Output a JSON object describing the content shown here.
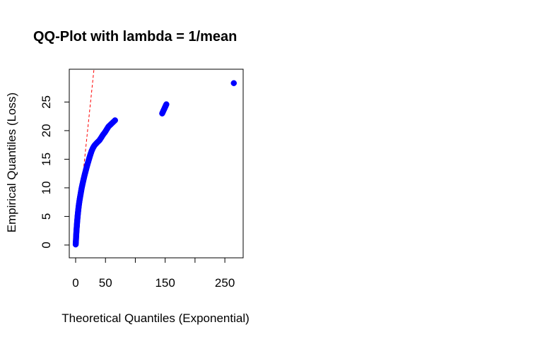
{
  "chart_data": {
    "type": "scatter",
    "title": "QQ-Plot with lambda = 1/mean",
    "xlabel": "Theoretical Quantiles (Exponential)",
    "ylabel": "Empirical Quantiles (Loss)",
    "xlim": [
      0,
      270
    ],
    "ylim": [
      -1,
      29.5
    ],
    "x_ticks": [
      0,
      50,
      100,
      150,
      200,
      250
    ],
    "x_tick_labels": [
      "0",
      "50",
      "",
      "150",
      "",
      "250"
    ],
    "y_ticks": [
      0,
      5,
      10,
      15,
      20,
      25
    ],
    "y_tick_labels": [
      "0",
      "5",
      "10",
      "15",
      "20",
      "25"
    ],
    "grid": false,
    "point_color": "#0000ff",
    "reference_line": {
      "slope": 1,
      "intercept": 0,
      "color": "#ff0000",
      "style": "dashed"
    },
    "points": [
      [
        0.1,
        0.1
      ],
      [
        0.2,
        0.3
      ],
      [
        0.4,
        0.6
      ],
      [
        0.6,
        1.0
      ],
      [
        0.8,
        1.4
      ],
      [
        1.0,
        1.8
      ],
      [
        1.3,
        2.3
      ],
      [
        1.6,
        2.8
      ],
      [
        2.0,
        3.3
      ],
      [
        2.4,
        3.9
      ],
      [
        2.9,
        4.5
      ],
      [
        3.4,
        5.1
      ],
      [
        4.0,
        5.7
      ],
      [
        4.6,
        6.3
      ],
      [
        5.3,
        6.9
      ],
      [
        6.1,
        7.5
      ],
      [
        7.0,
        8.1
      ],
      [
        8.0,
        8.7
      ],
      [
        9.0,
        9.3
      ],
      [
        10.0,
        9.9
      ],
      [
        11.2,
        10.5
      ],
      [
        12.5,
        11.1
      ],
      [
        13.8,
        11.7
      ],
      [
        15.2,
        12.3
      ],
      [
        16.7,
        12.9
      ],
      [
        18.2,
        13.5
      ],
      [
        19.8,
        14.1
      ],
      [
        21.5,
        14.7
      ],
      [
        23.2,
        15.3
      ],
      [
        25.0,
        15.9
      ],
      [
        27.0,
        16.5
      ],
      [
        29.2,
        17.0
      ],
      [
        31.5,
        17.4
      ],
      [
        34.0,
        17.7
      ],
      [
        36.8,
        18.0
      ],
      [
        39.8,
        18.3
      ],
      [
        43.0,
        18.8
      ],
      [
        46.0,
        19.3
      ],
      [
        49.0,
        19.7
      ],
      [
        52.0,
        20.2
      ],
      [
        55.0,
        20.7
      ],
      [
        58.0,
        21.0
      ],
      [
        66.0,
        21.8
      ],
      [
        145.0,
        23.0
      ],
      [
        152.0,
        24.6
      ],
      [
        265.0,
        28.3
      ]
    ]
  }
}
